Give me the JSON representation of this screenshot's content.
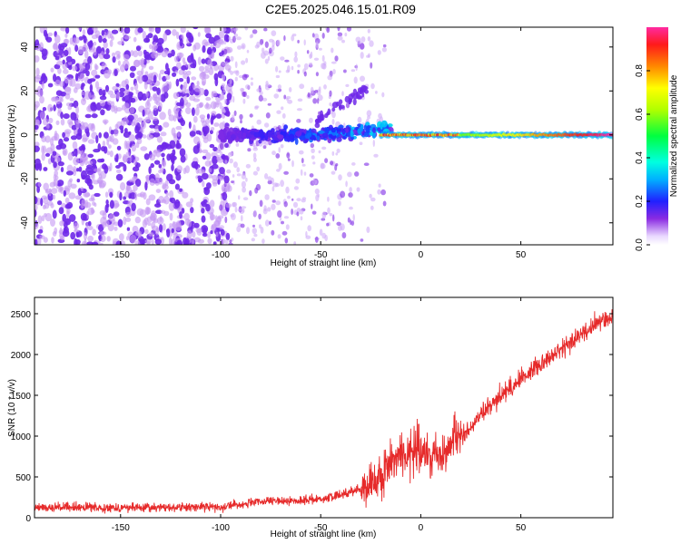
{
  "title": "C2E5.2025.046.15.01.R09",
  "chart_data": [
    {
      "type": "heatmap",
      "xlabel": "Height of straight line (km)",
      "ylabel": "Frequency (Hz)",
      "xlim": [
        -193,
        96
      ],
      "ylim": [
        -50,
        49
      ],
      "xticks": [
        -150,
        -100,
        -50,
        0,
        50
      ],
      "yticks": [
        -40,
        -20,
        0,
        20,
        40
      ],
      "colorbar": {
        "label": "Normalized spectral amplitude",
        "range": [
          0,
          1
        ],
        "ticks": [
          0.0,
          0.2,
          0.4,
          0.6,
          0.8
        ]
      },
      "features": [
        {
          "region": "x < -100 km",
          "description": "dense scattered noise, amplitude ~0.1-0.2"
        },
        {
          "region": "-100 to -20 km",
          "description": "sparse noise with emerging band near 0 Hz, amplitude up to ~0.4"
        },
        {
          "region": "x > -20 km",
          "description": "strong narrow band at ~0 Hz, amplitude 0.6-1.0"
        }
      ]
    },
    {
      "type": "line",
      "xlabel": "Height of straight line (km)",
      "ylabel": "SNR (10 * v/v)",
      "xlim": [
        -193,
        96
      ],
      "ylim": [
        0,
        2700
      ],
      "xticks": [
        -150,
        -100,
        -50,
        0,
        50
      ],
      "yticks": [
        0,
        500,
        1000,
        1500,
        2000,
        2500
      ],
      "color": "#e62a2a",
      "x": [
        -193,
        -160,
        -130,
        -100,
        -80,
        -60,
        -45,
        -35,
        -28,
        -22,
        -17,
        -13,
        -8,
        -3,
        2,
        7,
        12,
        16,
        20,
        25,
        30,
        40,
        50,
        60,
        70,
        80,
        90,
        96
      ],
      "values": [
        130,
        125,
        125,
        135,
        195,
        210,
        245,
        320,
        380,
        470,
        600,
        750,
        800,
        830,
        780,
        800,
        750,
        950,
        1000,
        1100,
        1250,
        1500,
        1700,
        1900,
        2050,
        2250,
        2400,
        2480
      ]
    }
  ]
}
